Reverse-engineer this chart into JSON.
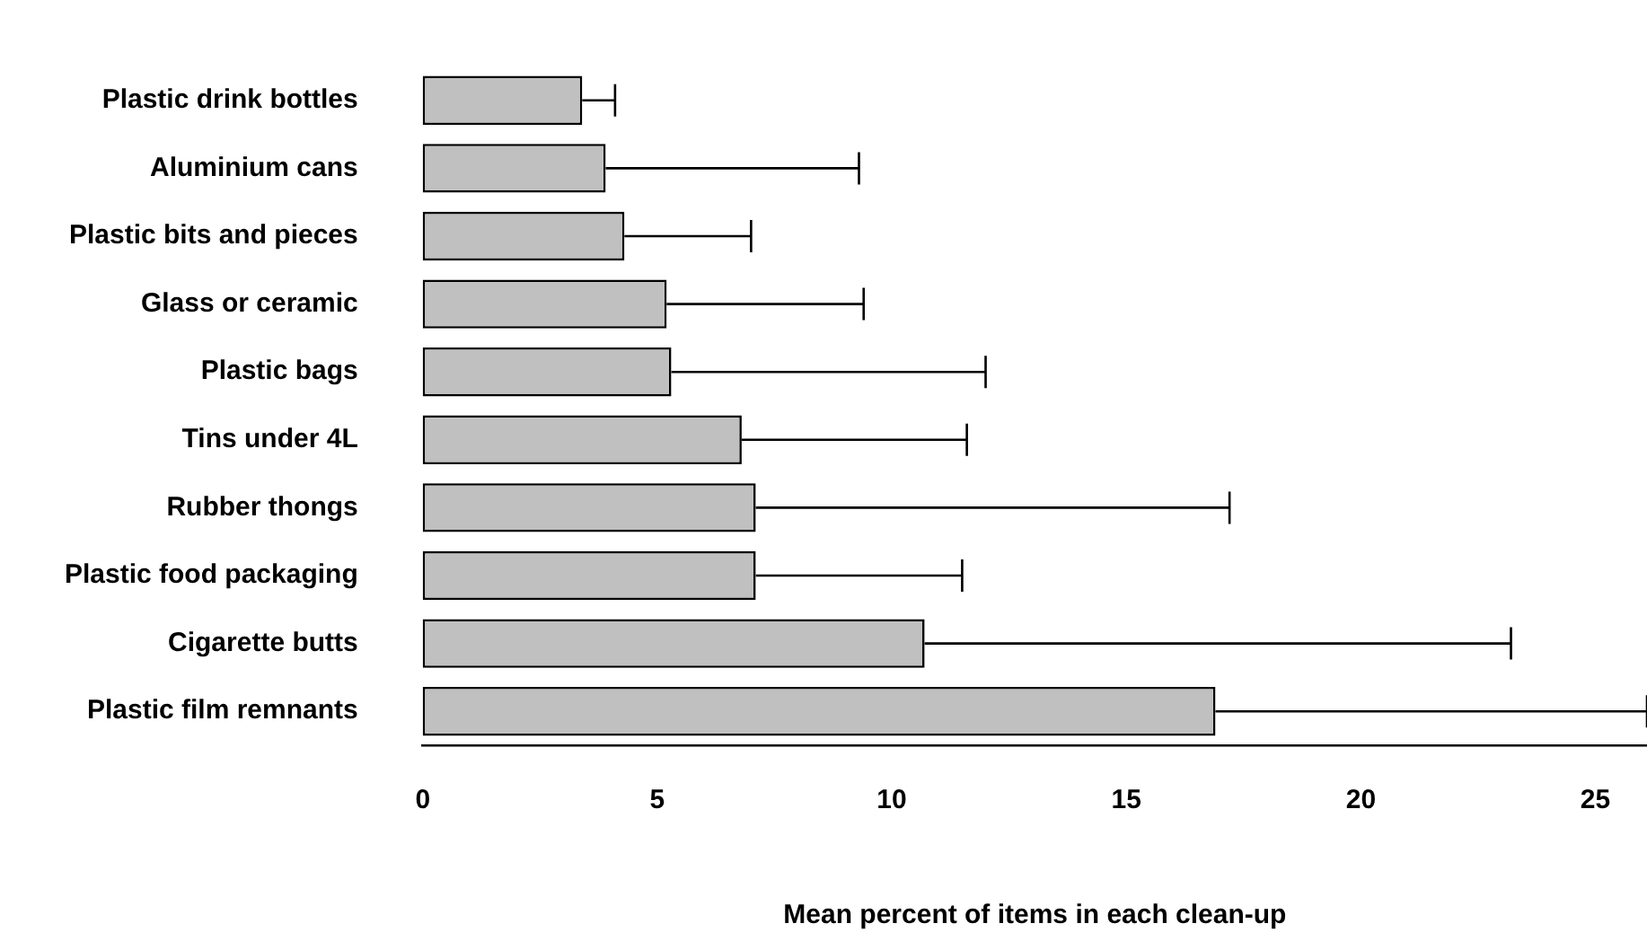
{
  "chart_data": {
    "type": "bar",
    "orientation": "horizontal",
    "xlabel": "Mean percent of items in each clean-up",
    "categories": [
      "Plastic drink bottles",
      "Aluminium cans",
      "Plastic bits and pieces",
      "Glass or ceramic",
      "Plastic bags",
      "Tins under 4L",
      "Rubber thongs",
      "Plastic food packaging",
      "Cigarette butts",
      "Plastic film remnants"
    ],
    "values": [
      3.4,
      3.9,
      4.3,
      5.2,
      5.3,
      6.8,
      7.1,
      7.1,
      10.7,
      16.9
    ],
    "errors": [
      [
        3.4,
        4.1
      ],
      [
        3.9,
        9.3
      ],
      [
        4.3,
        7.0
      ],
      [
        5.2,
        9.4
      ],
      [
        5.3,
        12.0
      ],
      [
        6.8,
        11.6
      ],
      [
        7.1,
        17.2
      ],
      [
        7.1,
        11.5
      ],
      [
        10.7,
        23.2
      ],
      [
        16.9,
        26.1
      ]
    ],
    "color": "#c0c0c0",
    "xlim": [
      0,
      26.1
    ],
    "xticks": [
      0,
      5,
      10,
      15,
      20,
      25
    ],
    "grid": false,
    "legend": false
  }
}
